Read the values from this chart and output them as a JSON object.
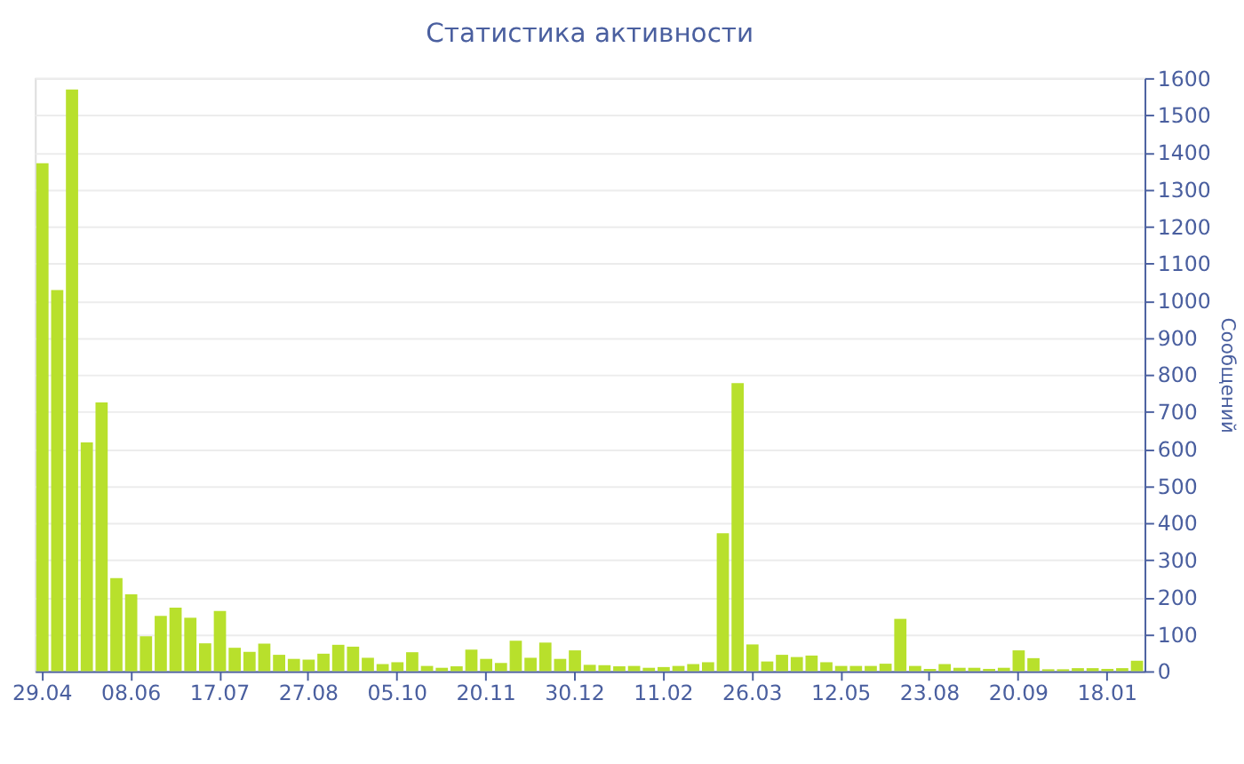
{
  "chart_data": {
    "type": "bar",
    "title": "Статистика активности",
    "ylabel": "Сообщений",
    "categories": [
      "29.04",
      null,
      null,
      null,
      null,
      null,
      "08.06",
      null,
      null,
      null,
      null,
      null,
      "17.07",
      null,
      null,
      null,
      null,
      null,
      "27.08",
      null,
      null,
      null,
      null,
      null,
      "05.10",
      null,
      null,
      null,
      null,
      null,
      "20.11",
      null,
      null,
      null,
      null,
      null,
      "30.12",
      null,
      null,
      null,
      null,
      null,
      "11.02",
      null,
      null,
      null,
      null,
      null,
      "26.03",
      null,
      null,
      null,
      null,
      null,
      "12.05",
      null,
      null,
      null,
      null,
      null,
      "23.08",
      null,
      null,
      null,
      null,
      null,
      "20.09",
      null,
      null,
      null,
      null,
      null,
      "18.01",
      null,
      null
    ],
    "values": [
      1370,
      1028,
      1569,
      617,
      725,
      251,
      207,
      94,
      149,
      171,
      144,
      75,
      162,
      63,
      52,
      74,
      44,
      33,
      31,
      47,
      71,
      66,
      36,
      19,
      24,
      51,
      14,
      9,
      13,
      58,
      33,
      22,
      82,
      36,
      77,
      33,
      56,
      17,
      16,
      13,
      14,
      9,
      11,
      14,
      19,
      24,
      372,
      777,
      72,
      26,
      44,
      38,
      42,
      24,
      14,
      14,
      14,
      20,
      141,
      14,
      6,
      19,
      9,
      9,
      6,
      9,
      56,
      35,
      5,
      5,
      8,
      8,
      6,
      8,
      28
    ],
    "color": "#b8e02c",
    "ylim": [
      0,
      1600
    ],
    "yticks": [
      0,
      100,
      200,
      300,
      400,
      500,
      600,
      700,
      800,
      900,
      1000,
      1100,
      1200,
      1300,
      1400,
      1500,
      1600
    ],
    "grid": "y"
  }
}
